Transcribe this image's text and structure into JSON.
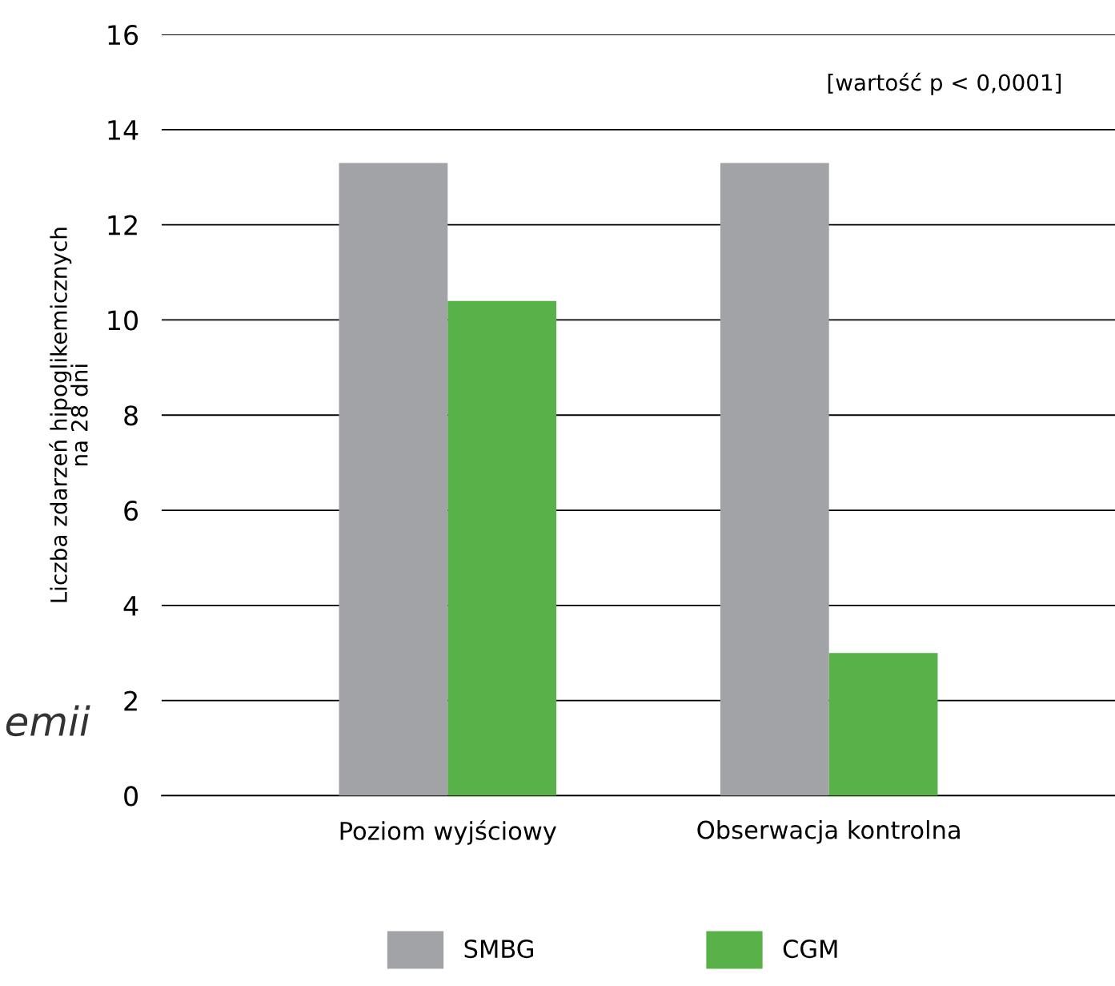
{
  "chart_data": {
    "type": "bar",
    "categories": [
      "Poziom wyjściowy",
      "Obserwacja kontrolna"
    ],
    "series": [
      {
        "name": "SMBG",
        "color": "#a2a3a6",
        "values": [
          13.3,
          13.3
        ]
      },
      {
        "name": "CGM",
        "color": "#58b249",
        "values": [
          10.4,
          3.0
        ]
      }
    ],
    "ylabel": "Liczba zdarzeń hipoglikemicznych\nna 28 dni",
    "ylim": [
      0,
      16
    ],
    "yticks": [
      0,
      2,
      4,
      6,
      8,
      10,
      12,
      14,
      16
    ],
    "grid": "y",
    "legend": "bottom",
    "annotations": [
      "[wartość p < 0,0001]",
      "emii"
    ]
  }
}
